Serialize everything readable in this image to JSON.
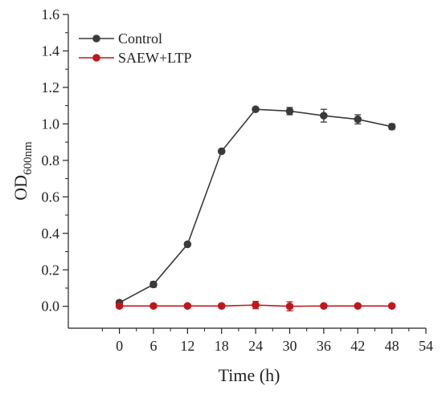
{
  "chart_data": {
    "type": "line",
    "x": [
      0,
      6,
      12,
      18,
      24,
      30,
      36,
      42,
      48
    ],
    "xlim": [
      -9,
      54
    ],
    "ylim": [
      -0.12,
      1.6
    ],
    "x_ticks": [
      0,
      6,
      12,
      18,
      24,
      30,
      36,
      42,
      48,
      54
    ],
    "y_ticks": [
      0.0,
      0.2,
      0.4,
      0.6,
      0.8,
      1.0,
      1.2,
      1.4,
      1.6
    ],
    "x_tick_labels": [
      "0",
      "6",
      "12",
      "18",
      "24",
      "30",
      "36",
      "42",
      "48",
      "54"
    ],
    "y_tick_labels": [
      "0.0",
      "0.2",
      "0.4",
      "0.6",
      "0.8",
      "1.0",
      "1.2",
      "1.4",
      "1.6"
    ],
    "xlabel": "Time (h)",
    "ylabel_main": "OD",
    "ylabel_sub": "600nm",
    "grid": false,
    "legend_position": "top-left",
    "series": [
      {
        "name": "Control",
        "color": "#3a3a3a",
        "marker": "circle",
        "values": [
          0.02,
          0.12,
          0.34,
          0.85,
          1.08,
          1.07,
          1.045,
          1.025,
          0.985
        ],
        "errors": [
          0.008,
          0.015,
          0.01,
          0.008,
          0.008,
          0.02,
          0.035,
          0.025,
          0.015
        ]
      },
      {
        "name": "SAEW+LTP",
        "color": "#c0171d",
        "marker": "circle",
        "values": [
          0.002,
          0.002,
          0.002,
          0.002,
          0.007,
          0.0,
          0.002,
          0.002,
          0.002
        ],
        "errors": [
          0.004,
          0.004,
          0.004,
          0.01,
          0.02,
          0.025,
          0.005,
          0.008,
          0.005
        ]
      }
    ]
  }
}
